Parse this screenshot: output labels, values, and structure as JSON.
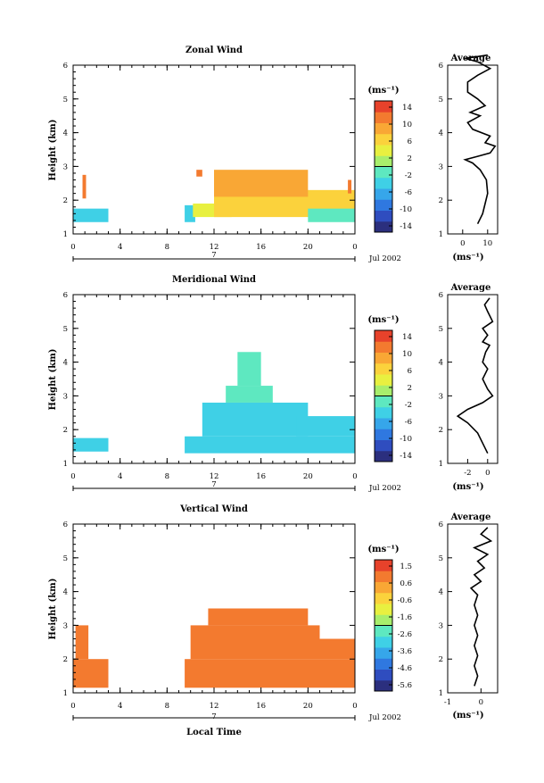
{
  "shared": {
    "date_label": "Jul 2002",
    "day_label": "7",
    "x_ticks": [
      "0",
      "4",
      "8",
      "12",
      "16",
      "20",
      "0"
    ],
    "y_ticks": [
      "1",
      "2",
      "3",
      "4",
      "5",
      "6"
    ],
    "ylabel": "Height (km)",
    "units_label": "(ms⁻¹)",
    "avg_title": "Average",
    "avg_xlabel": "(ms⁻¹)",
    "xlabel": "Local Time"
  },
  "chart_data": [
    {
      "type": "heatmap",
      "title": "Zonal Wind",
      "ylim": [
        1,
        6
      ],
      "xlim_hours": [
        0,
        24
      ],
      "colorbar_ticks": [
        "14",
        "10",
        "6",
        "2",
        "-2",
        "-6",
        "-10",
        "-14"
      ],
      "colorbar_range": [
        -16,
        16
      ],
      "cells": [
        {
          "t_start": 0,
          "t_end": 3,
          "h_start": 1.35,
          "h_end": 1.75,
          "value": -4
        },
        {
          "t_start": 0.8,
          "t_end": 1.1,
          "h_start": 2.05,
          "h_end": 2.75,
          "value": 11
        },
        {
          "t_start": 9.5,
          "t_end": 10.4,
          "h_start": 1.35,
          "h_end": 1.85,
          "value": -3
        },
        {
          "t_start": 10.2,
          "t_end": 13.5,
          "h_start": 1.5,
          "h_end": 1.9,
          "value": 3
        },
        {
          "t_start": 12,
          "t_end": 24,
          "h_start": 1.5,
          "h_end": 2.3,
          "value": 7
        },
        {
          "t_start": 12,
          "t_end": 20,
          "h_start": 2.1,
          "h_end": 2.9,
          "value": 9
        },
        {
          "t_start": 10.5,
          "t_end": 11,
          "h_start": 2.7,
          "h_end": 2.9,
          "value": 12
        },
        {
          "t_start": 20,
          "t_end": 24,
          "h_start": 1.35,
          "h_end": 1.75,
          "value": -1
        },
        {
          "t_start": 23.4,
          "t_end": 23.7,
          "h_start": 2.2,
          "h_end": 2.6,
          "value": 12
        }
      ],
      "average_profile": {
        "xlim": [
          -6,
          14
        ],
        "x_ticks": [
          "0",
          "10"
        ],
        "points": [
          [
            6,
            1.3
          ],
          [
            8,
            1.6
          ],
          [
            9,
            1.9
          ],
          [
            10,
            2.2
          ],
          [
            9.5,
            2.6
          ],
          [
            7,
            2.9
          ],
          [
            4,
            3.1
          ],
          [
            1,
            3.2
          ],
          [
            6,
            3.3
          ],
          [
            11,
            3.4
          ],
          [
            13,
            3.6
          ],
          [
            9,
            3.7
          ],
          [
            11,
            3.9
          ],
          [
            4,
            4.1
          ],
          [
            2,
            4.3
          ],
          [
            7,
            4.5
          ],
          [
            3,
            4.6
          ],
          [
            9,
            4.8
          ],
          [
            6,
            5.0
          ],
          [
            2,
            5.2
          ],
          [
            2,
            5.5
          ],
          [
            6,
            5.7
          ],
          [
            11,
            5.9
          ],
          [
            6,
            6.1
          ],
          [
            1,
            6.2
          ],
          [
            10,
            6.3
          ]
        ]
      }
    },
    {
      "type": "heatmap",
      "title": "Meridional Wind",
      "ylim": [
        1,
        6
      ],
      "xlim_hours": [
        0,
        24
      ],
      "colorbar_ticks": [
        "14",
        "10",
        "6",
        "2",
        "-2",
        "-6",
        "-10",
        "-14"
      ],
      "colorbar_range": [
        -16,
        16
      ],
      "cells": [
        {
          "t_start": 0,
          "t_end": 3,
          "h_start": 1.35,
          "h_end": 1.75,
          "value": -3
        },
        {
          "t_start": 9.5,
          "t_end": 24,
          "h_start": 1.3,
          "h_end": 1.8,
          "value": -4
        },
        {
          "t_start": 11,
          "t_end": 20,
          "h_start": 1.8,
          "h_end": 2.8,
          "value": -4
        },
        {
          "t_start": 13,
          "t_end": 17,
          "h_start": 2.8,
          "h_end": 3.3,
          "value": -2
        },
        {
          "t_start": 14,
          "t_end": 16,
          "h_start": 3.3,
          "h_end": 4.3,
          "value": -1
        },
        {
          "t_start": 19,
          "t_end": 24,
          "h_start": 1.8,
          "h_end": 2.4,
          "value": -4
        }
      ],
      "average_profile": {
        "xlim": [
          -4,
          1
        ],
        "x_ticks": [
          "-2",
          "0"
        ],
        "points": [
          [
            0,
            1.3
          ],
          [
            -0.5,
            1.6
          ],
          [
            -1,
            1.9
          ],
          [
            -2,
            2.2
          ],
          [
            -3,
            2.4
          ],
          [
            -2,
            2.6
          ],
          [
            -0.5,
            2.8
          ],
          [
            0.5,
            3.0
          ],
          [
            0,
            3.2
          ],
          [
            -0.5,
            3.5
          ],
          [
            0,
            3.8
          ],
          [
            -0.5,
            4.0
          ],
          [
            -0.2,
            4.3
          ],
          [
            0.2,
            4.5
          ],
          [
            -0.5,
            4.6
          ],
          [
            0,
            4.8
          ],
          [
            -0.5,
            5.0
          ],
          [
            0.5,
            5.2
          ],
          [
            0,
            5.5
          ],
          [
            -0.3,
            5.7
          ],
          [
            0.2,
            5.9
          ]
        ]
      }
    },
    {
      "type": "heatmap",
      "title": "Vertical Wind",
      "ylim": [
        1,
        6
      ],
      "xlim_hours": [
        0,
        24
      ],
      "colorbar_ticks": [
        "1.5",
        "0.6",
        "-0.6",
        "-1.6",
        "-2.6",
        "-3.6",
        "-4.6",
        "-5.6"
      ],
      "colorbar_range": [
        -6,
        2
      ],
      "cells": [
        {
          "t_start": 0,
          "t_end": 3,
          "h_start": 1.15,
          "h_end": 2.0,
          "value": 0.8
        },
        {
          "t_start": 0.2,
          "t_end": 1.3,
          "h_start": 2.0,
          "h_end": 3.0,
          "value": 1.0
        },
        {
          "t_start": 9.5,
          "t_end": 24,
          "h_start": 1.15,
          "h_end": 2.0,
          "value": 0.9
        },
        {
          "t_start": 10,
          "t_end": 21,
          "h_start": 2.0,
          "h_end": 3.0,
          "value": 1.1
        },
        {
          "t_start": 11.5,
          "t_end": 20,
          "h_start": 3.0,
          "h_end": 3.5,
          "value": 1.0
        },
        {
          "t_start": 21,
          "t_end": 24,
          "h_start": 2.0,
          "h_end": 2.6,
          "value": 1.0
        }
      ],
      "average_profile": {
        "xlim": [
          -1,
          0.5
        ],
        "x_ticks": [
          "-1",
          "0"
        ],
        "points": [
          [
            -0.2,
            1.2
          ],
          [
            -0.1,
            1.5
          ],
          [
            -0.2,
            1.8
          ],
          [
            -0.1,
            2.1
          ],
          [
            -0.2,
            2.4
          ],
          [
            -0.1,
            2.7
          ],
          [
            -0.2,
            3.0
          ],
          [
            -0.1,
            3.3
          ],
          [
            -0.2,
            3.6
          ],
          [
            -0.1,
            3.9
          ],
          [
            -0.3,
            4.1
          ],
          [
            0,
            4.3
          ],
          [
            -0.2,
            4.5
          ],
          [
            0.1,
            4.7
          ],
          [
            -0.1,
            4.9
          ],
          [
            0.2,
            5.1
          ],
          [
            -0.2,
            5.3
          ],
          [
            0.3,
            5.5
          ],
          [
            0,
            5.7
          ],
          [
            0.2,
            5.9
          ]
        ]
      }
    }
  ]
}
